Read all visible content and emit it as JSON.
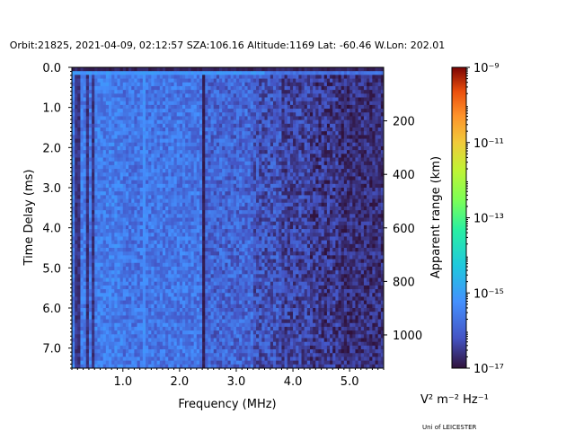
{
  "chart_data": {
    "type": "heatmap",
    "title": "Orbit:21825, 2021-04-09, 02:12:57 SZA:106.16 Altitude:1169 Lat: -60.46 W.Lon: 202.01",
    "xlabel": "Frequency (MHz)",
    "ylabel": "Time Delay (ms)",
    "y2label": "Apparent range (km)",
    "xlim": [
      0.1,
      5.6
    ],
    "ylim": [
      7.5,
      0.0
    ],
    "xticks": [
      1.0,
      2.0,
      3.0,
      4.0,
      5.0
    ],
    "xtick_labels": [
      "1.0",
      "2.0",
      "3.0",
      "4.0",
      "5.0"
    ],
    "yticks": [
      0.0,
      1.0,
      2.0,
      3.0,
      4.0,
      5.0,
      6.0,
      7.0
    ],
    "ytick_labels": [
      "0.0",
      "1.0",
      "2.0",
      "3.0",
      "4.0",
      "5.0",
      "6.0",
      "7.0"
    ],
    "y2ticks": [
      200,
      400,
      600,
      800,
      1000
    ],
    "y2tick_labels": [
      "200",
      "400",
      "600",
      "800",
      "1000"
    ],
    "km_per_ms": 149.9,
    "grid": false,
    "colorbar": {
      "label": "V² m⁻² Hz⁻¹",
      "scale": "log",
      "range": [
        1e-17,
        1e-09
      ],
      "ticks": [
        -17,
        -15,
        -13,
        -11,
        -9
      ],
      "tick_labels": [
        "10⁻¹⁷",
        "10⁻¹⁵",
        "10⁻¹³",
        "10⁻¹¹",
        "10⁻⁹"
      ],
      "colormap": "turbo"
    },
    "features": {
      "bright_row_delay_ms": 0.15,
      "bright_row_freq_range_mhz": [
        0.1,
        5.6
      ],
      "bright_column_mhz": 1.35,
      "dark_column_mhz": 2.4,
      "dark_low_freq_columns_mhz": [
        0.18,
        0.35,
        0.45
      ],
      "high_freq_dark_region_start_mhz": 4.3
    }
  },
  "credit": "Uni of LEICESTER"
}
